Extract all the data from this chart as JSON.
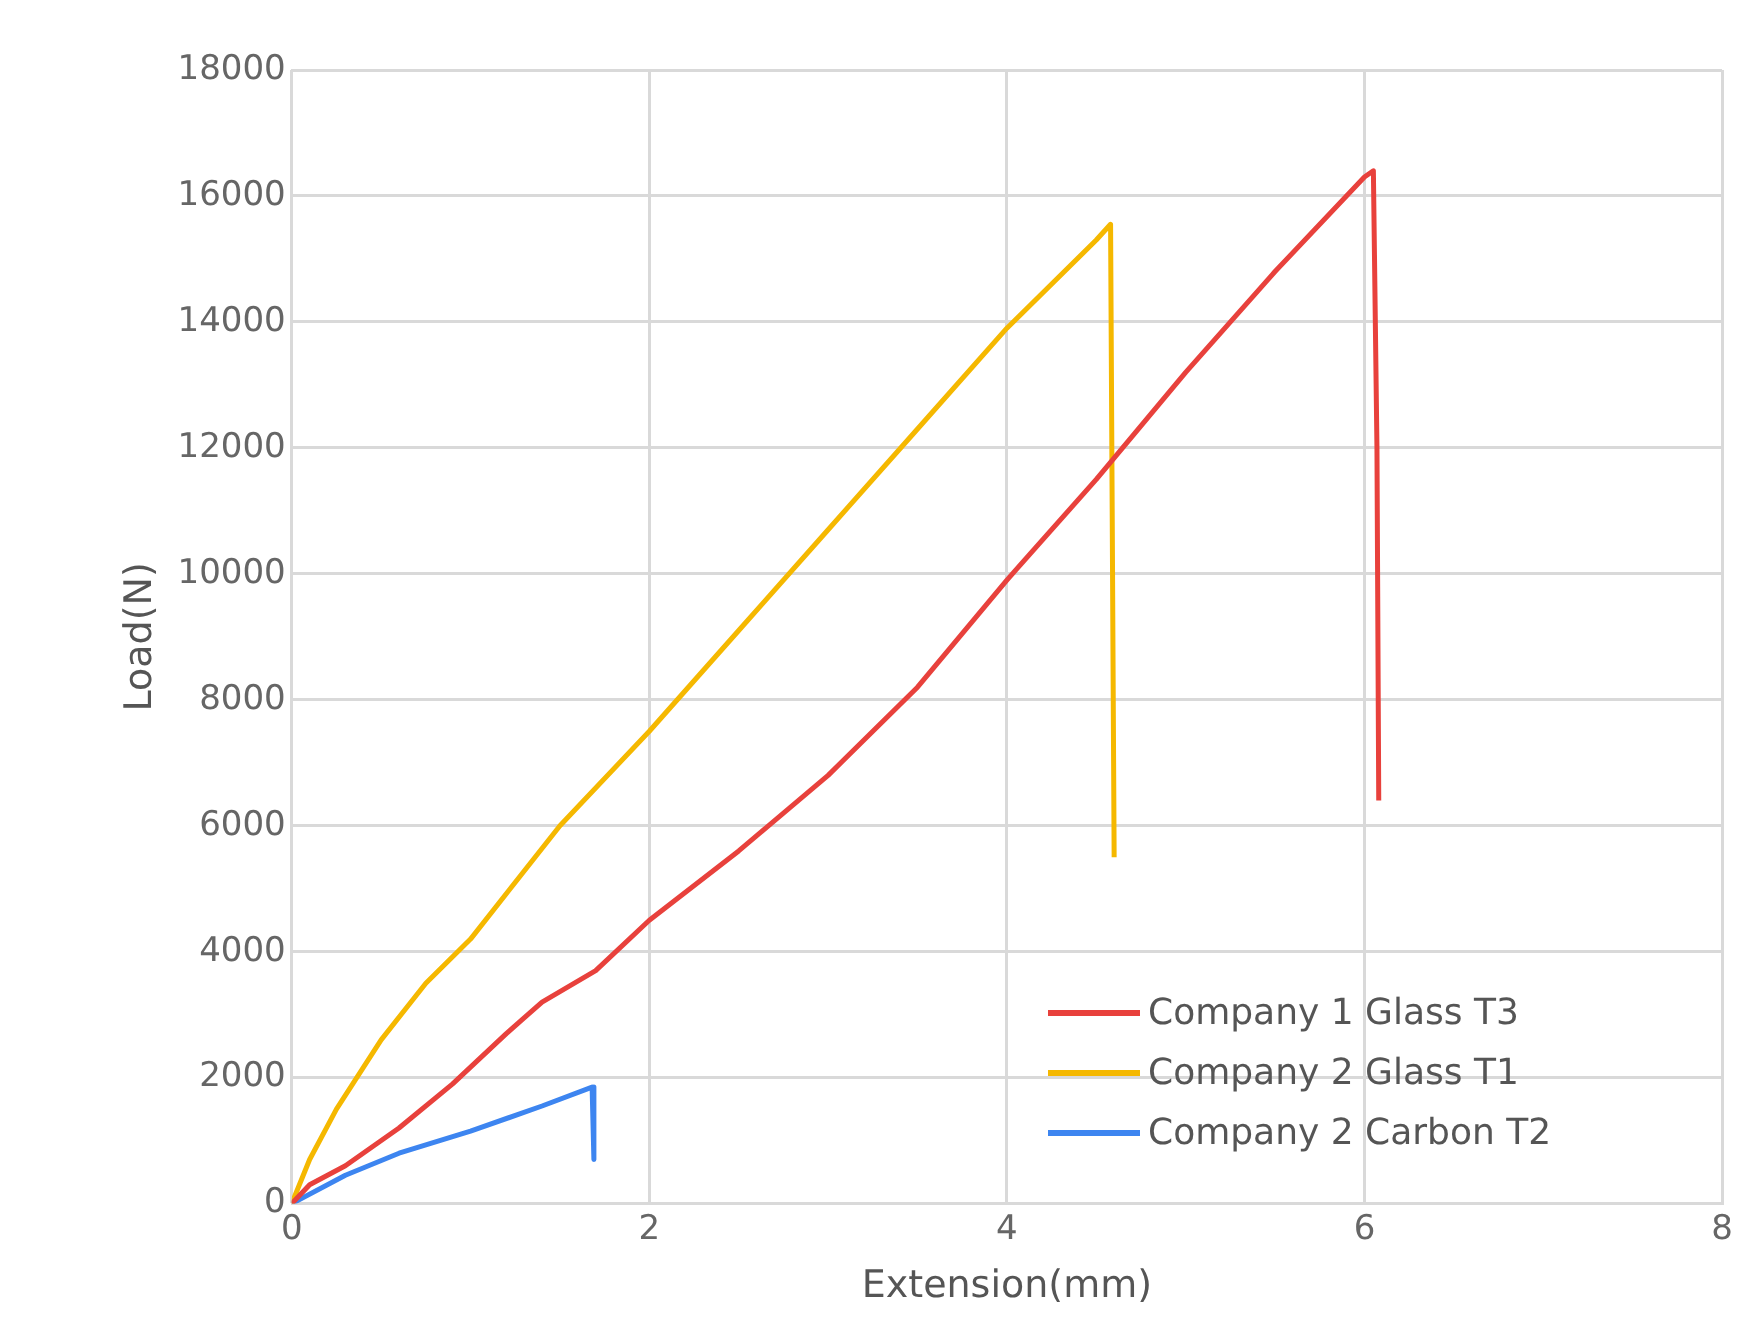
{
  "chart_data": {
    "type": "line",
    "xlabel": "Extension(mm)",
    "ylabel": "Load(N)",
    "xlim": [
      0,
      8
    ],
    "xticks": [
      0,
      2,
      4,
      6,
      8
    ],
    "ylim": [
      0,
      18000
    ],
    "yticks": [
      0,
      2000,
      4000,
      6000,
      8000,
      10000,
      12000,
      14000,
      16000,
      18000
    ],
    "grid": true,
    "legend": "bottom right",
    "marker": "none",
    "line_style": "solid",
    "series": [
      {
        "name": "Company 1 Glass T3",
        "color": "#e8413c",
        "x": [
          0,
          0.1,
          0.3,
          0.6,
          0.9,
          1.2,
          1.4,
          1.7,
          2,
          2.5,
          3,
          3.5,
          4,
          4.5,
          5,
          5.5,
          6,
          6.05,
          6.07,
          6.08
        ],
        "values": [
          0,
          300,
          600,
          1200,
          1900,
          2700,
          3200,
          3700,
          4500,
          5600,
          6800,
          8200,
          9900,
          11500,
          13200,
          14800,
          16300,
          16400,
          12000,
          6400
        ]
      },
      {
        "name": "Company 2 Glass T1",
        "color": "#f5b800",
        "x": [
          0,
          0.1,
          0.25,
          0.5,
          0.75,
          1,
          1.5,
          2,
          2.5,
          3,
          3.5,
          4,
          4.5,
          4.58,
          4.6
        ],
        "values": [
          0,
          700,
          1500,
          2600,
          3500,
          4200,
          6000,
          7500,
          9100,
          10700,
          12300,
          13900,
          15300,
          15550,
          5500
        ]
      },
      {
        "name": "Company 2 Carbon T2",
        "color": "#3d85f0",
        "x": [
          0,
          0.3,
          0.6,
          1,
          1.4,
          1.68,
          1.69
        ],
        "values": [
          0,
          450,
          800,
          1150,
          1550,
          1850,
          700
        ]
      }
    ]
  }
}
